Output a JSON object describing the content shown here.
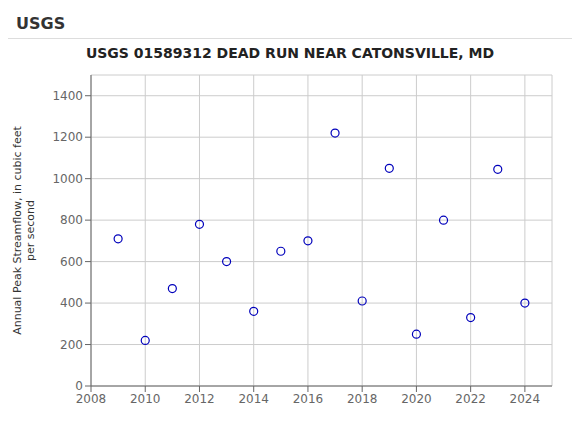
{
  "chart_data": {
    "type": "scatter",
    "title": "USGS 01589312 DEAD RUN NEAR CATONSVILLE, MD",
    "annotations": [
      "USGS"
    ],
    "ylabel": "Annual Peak Streamflow, in cubic feet\nper second",
    "x": [
      2009,
      2010,
      2011,
      2012,
      2013,
      2014,
      2015,
      2016,
      2017,
      2018,
      2019,
      2020,
      2021,
      2022,
      2023,
      2024
    ],
    "values": [
      710,
      220,
      470,
      780,
      600,
      360,
      650,
      700,
      1220,
      410,
      1050,
      250,
      800,
      330,
      1045,
      400
    ],
    "color": "#0000BB",
    "marker": "circle",
    "xlim": [
      2008,
      2025
    ],
    "ylim": [
      0,
      1500
    ],
    "xticks": [
      2008,
      2010,
      2012,
      2014,
      2016,
      2018,
      2020,
      2022,
      2024
    ],
    "yticks": [
      0,
      200,
      400,
      600,
      800,
      1000,
      1200,
      1400
    ],
    "grid": true
  }
}
